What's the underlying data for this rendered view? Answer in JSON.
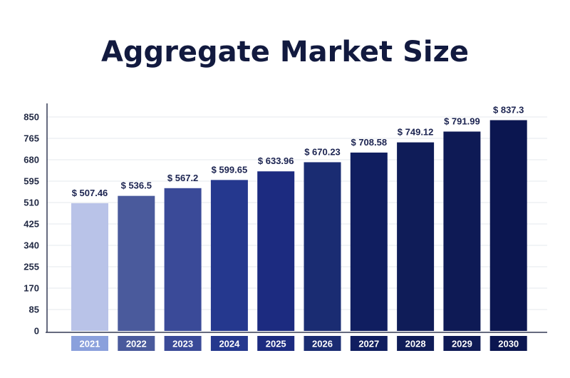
{
  "chart_data": {
    "type": "bar",
    "title": "Aggregate Market Size",
    "xlabel": "",
    "ylabel": "",
    "categories": [
      "2021",
      "2022",
      "2023",
      "2024",
      "2025",
      "2026",
      "2027",
      "2028",
      "2029",
      "2030"
    ],
    "values": [
      507.46,
      536.5,
      567.2,
      599.65,
      633.96,
      670.23,
      708.58,
      749.12,
      791.99,
      837.3
    ],
    "value_labels": [
      "$ 507.46",
      "$ 536.5",
      "$ 567.2",
      "$ 599.65",
      "$ 633.96",
      "$ 670.23",
      "$ 708.58",
      "$ 749.12",
      "$ 791.99",
      "$ 837.3"
    ],
    "y_ticks": [
      0,
      85,
      170,
      255,
      340,
      425,
      510,
      595,
      680,
      765,
      850
    ],
    "ylim": [
      0,
      850
    ],
    "grid": true,
    "legend": "none",
    "bar_colors": [
      "#b9c3e8",
      "#4a5a9c",
      "#3a4a98",
      "#25388e",
      "#1c2b80",
      "#1a2c72",
      "#101e60",
      "#0f1c58",
      "#0e1a55",
      "#0b1650"
    ],
    "category_badge_colors": [
      "#8aa0dc",
      "#4a5a9c",
      "#3a4a98",
      "#25388e",
      "#1c2b80",
      "#1a2c72",
      "#101e60",
      "#0f1c58",
      "#0e1a55",
      "#0b1650"
    ]
  }
}
